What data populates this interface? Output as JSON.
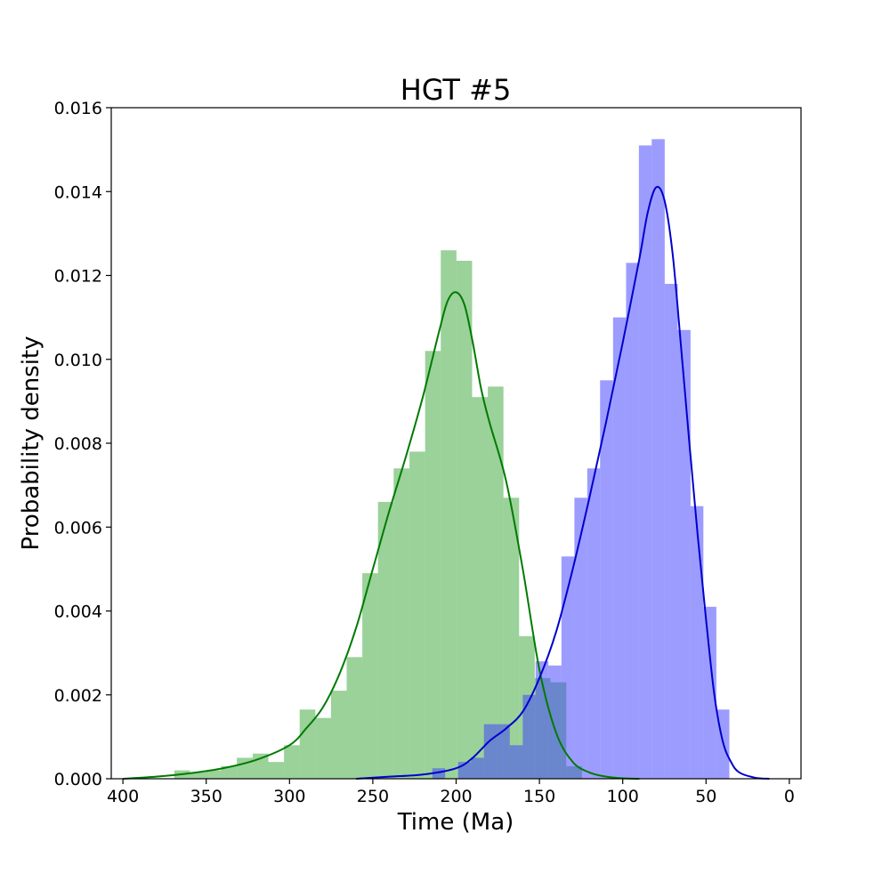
{
  "chart_data": {
    "type": "bar",
    "title": "HGT #5",
    "xlabel": "Time (Ma)",
    "ylabel": "Probability density",
    "xlim": [
      407,
      -7
    ],
    "ylim": [
      0,
      0.016
    ],
    "x_ticks": [
      400,
      350,
      300,
      250,
      200,
      150,
      100,
      50,
      0
    ],
    "y_ticks": [
      "0.000",
      "0.002",
      "0.004",
      "0.006",
      "0.008",
      "0.010",
      "0.012",
      "0.014",
      "0.016"
    ],
    "grid": false,
    "colors": {
      "green_hist": "#2ca02c",
      "green_line": "#007a00",
      "blue_hist": "#3a3aff",
      "blue_line": "#0000cc"
    },
    "series": [
      {
        "histogram": {
          "bin_edges": [
            369.2,
            359.8,
            350.4,
            341.0,
            331.6,
            322.1,
            312.7,
            303.3,
            293.9,
            284.5,
            275.1,
            265.7,
            256.3,
            246.9,
            237.5,
            228.0,
            218.6,
            209.2,
            199.8,
            190.4,
            181.0,
            171.6,
            162.2,
            152.8,
            143.4,
            133.9,
            124.5
          ],
          "values": [
            0.0002,
            0.00015,
            0.0002,
            0.0003,
            0.0005,
            0.0006,
            0.0004,
            0.0008,
            0.00165,
            0.00145,
            0.0021,
            0.0029,
            0.0049,
            0.0066,
            0.0074,
            0.0078,
            0.0102,
            0.0126,
            0.01235,
            0.0091,
            0.00935,
            0.0067,
            0.0034,
            0.0024,
            0.0023,
            0.0003
          ]
        },
        "kde": {
          "x": [
            400,
            380,
            360,
            340,
            320,
            300,
            290,
            280,
            270,
            260,
            250,
            240,
            230,
            220,
            210,
            205,
            200,
            195,
            190,
            185,
            180,
            170,
            160,
            150,
            140,
            130,
            120,
            110,
            100,
            90
          ],
          "y": [
            0.0,
            5e-05,
            0.00013,
            0.00025,
            0.00045,
            0.0008,
            0.0012,
            0.0017,
            0.0025,
            0.0036,
            0.005,
            0.0064,
            0.0077,
            0.0091,
            0.0107,
            0.0114,
            0.0116,
            0.0113,
            0.0104,
            0.0093,
            0.0085,
            0.0071,
            0.005,
            0.0026,
            0.0011,
            0.0004,
            0.00015,
            5e-05,
            1e-05,
            0.0
          ]
        }
      },
      {
        "histogram": {
          "bin_edges": [
            214.3,
            206.6,
            198.8,
            191.0,
            183.3,
            175.6,
            167.8,
            160.0,
            152.3,
            144.6,
            136.8,
            129.0,
            121.3,
            113.6,
            105.8,
            98.0,
            90.3,
            82.6,
            74.8,
            67.0,
            59.3,
            51.6,
            43.8,
            36.0
          ],
          "values": [
            0.00025,
            0.0,
            0.0004,
            0.0005,
            0.0013,
            0.0013,
            0.0008,
            0.002,
            0.0028,
            0.0027,
            0.0053,
            0.0067,
            0.0074,
            0.0095,
            0.011,
            0.0123,
            0.0151,
            0.01525,
            0.0118,
            0.0107,
            0.0065,
            0.0041,
            0.00165
          ]
        },
        "kde": {
          "x": [
            260,
            240,
            220,
            200,
            190,
            180,
            170,
            160,
            150,
            140,
            130,
            120,
            110,
            100,
            90,
            85,
            80,
            75,
            70,
            65,
            60,
            55,
            50,
            45,
            40,
            35,
            30,
            20,
            12
          ],
          "y": [
            0.0,
            5e-05,
            0.0001,
            0.00025,
            0.0005,
            0.0009,
            0.0012,
            0.0016,
            0.0024,
            0.0035,
            0.005,
            0.0067,
            0.0085,
            0.0104,
            0.0124,
            0.0135,
            0.0141,
            0.0138,
            0.0125,
            0.0103,
            0.008,
            0.0058,
            0.0038,
            0.002,
            0.0009,
            0.0004,
            0.00015,
            2e-05,
            0.0
          ]
        }
      }
    ]
  }
}
